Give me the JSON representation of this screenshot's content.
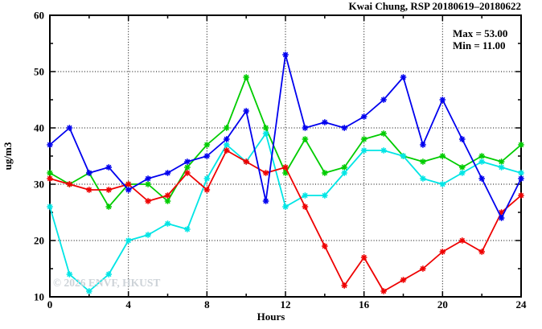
{
  "title": "Kwai Chung, RSP 20180619–20180622",
  "annotation": {
    "max_label": "Max = 53.00",
    "min_label": "Min = 11.00"
  },
  "watermark": "© 2026 ENVF, HKUST",
  "chart_data": {
    "type": "line",
    "title": "Kwai Chung, RSP 20180619–20180622",
    "xlabel": "Hours",
    "ylabel": "ug/m3",
    "xlim": [
      0,
      24
    ],
    "ylim": [
      10,
      60
    ],
    "x_ticks_labeled": [
      0,
      4,
      8,
      12,
      16,
      20,
      24
    ],
    "x_ticks_minor": [
      2,
      6,
      10,
      14,
      18,
      22
    ],
    "y_ticks_labeled": [
      10,
      20,
      30,
      40,
      50,
      60
    ],
    "y_ticks_minor": [
      15,
      25,
      35,
      45,
      55
    ],
    "grid": {
      "style": "dotted",
      "x_values": [
        4,
        8,
        12,
        16,
        20
      ],
      "y_values": [
        20,
        30,
        40,
        50
      ]
    },
    "legend_position": "none",
    "marker": "asterisk",
    "x": [
      0,
      1,
      2,
      3,
      4,
      5,
      6,
      7,
      8,
      9,
      10,
      11,
      12,
      13,
      14,
      15,
      16,
      17,
      18,
      19,
      20,
      21,
      22,
      23,
      24
    ],
    "series": [
      {
        "name": "day-1-green",
        "color": "#00cc00",
        "values": [
          32,
          30,
          32,
          26,
          30,
          30,
          27,
          33,
          37,
          40,
          49,
          40,
          32,
          38,
          32,
          33,
          38,
          39,
          35,
          34,
          35,
          33,
          35,
          34,
          37
        ]
      },
      {
        "name": "day-2-cyan",
        "color": "#00e5e5",
        "values": [
          26,
          14,
          11,
          14,
          20,
          21,
          23,
          22,
          31,
          37,
          34,
          39,
          26,
          28,
          28,
          32,
          36,
          36,
          35,
          31,
          30,
          32,
          34,
          33,
          32
        ]
      },
      {
        "name": "day-3-red",
        "color": "#ee0000",
        "values": [
          31,
          30,
          29,
          29,
          30,
          27,
          28,
          32,
          29,
          36,
          34,
          32,
          33,
          26,
          19,
          12,
          17,
          11,
          13,
          15,
          18,
          20,
          18,
          25,
          28
        ]
      },
      {
        "name": "day-4-blue",
        "color": "#0000ee",
        "values": [
          37,
          40,
          32,
          33,
          29,
          31,
          32,
          34,
          35,
          38,
          43,
          27,
          53,
          40,
          41,
          40,
          42,
          45,
          49,
          37,
          45,
          38,
          31,
          24,
          31
        ]
      }
    ],
    "max_value": 53.0,
    "min_value": 11.0
  }
}
